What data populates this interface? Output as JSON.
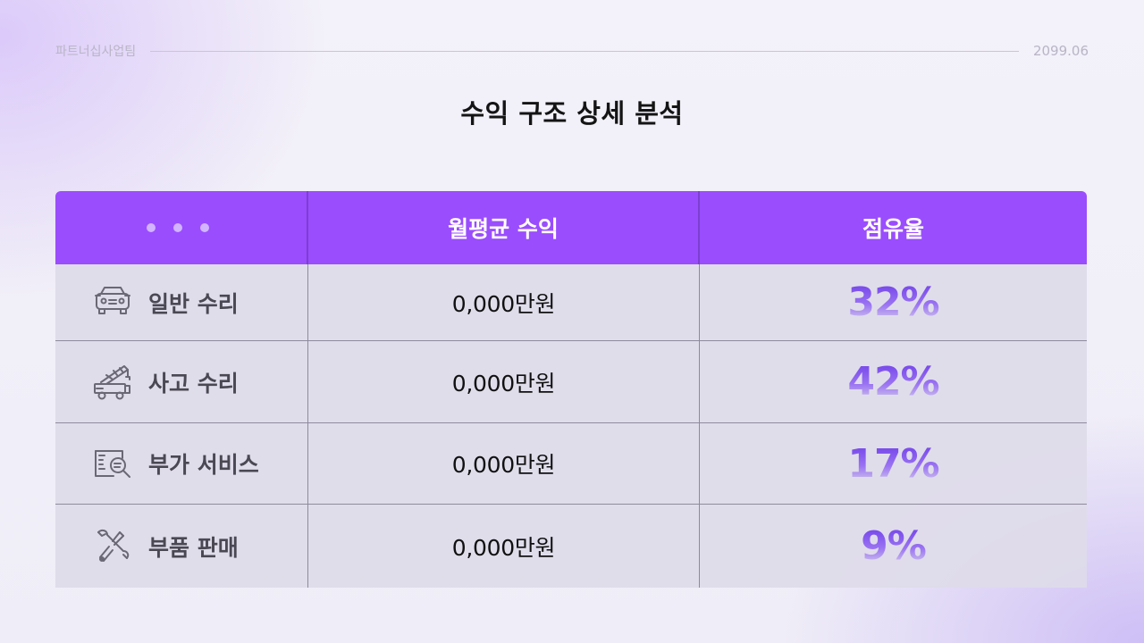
{
  "header": {
    "team": "파트너십사업팀",
    "date": "2099.06"
  },
  "title": "수익 구조 상세 분석",
  "table": {
    "columns": [
      "",
      "월평균 수익",
      "점유율"
    ],
    "rows": [
      {
        "icon": "car-icon",
        "label": "일반 수리",
        "revenue": "0,000만원",
        "share": "32%"
      },
      {
        "icon": "tow-truck-icon",
        "label": "사고 수리",
        "revenue": "0,000만원",
        "share": "42%"
      },
      {
        "icon": "search-document-icon",
        "label": "부가 서비스",
        "revenue": "0,000만원",
        "share": "17%"
      },
      {
        "icon": "tools-icon",
        "label": "부품 판매",
        "revenue": "0,000만원",
        "share": "9%"
      }
    ]
  },
  "colors": {
    "header": "#9a4dfd",
    "accent": "#6c3ce8",
    "row_bg": "#dedbe9"
  }
}
